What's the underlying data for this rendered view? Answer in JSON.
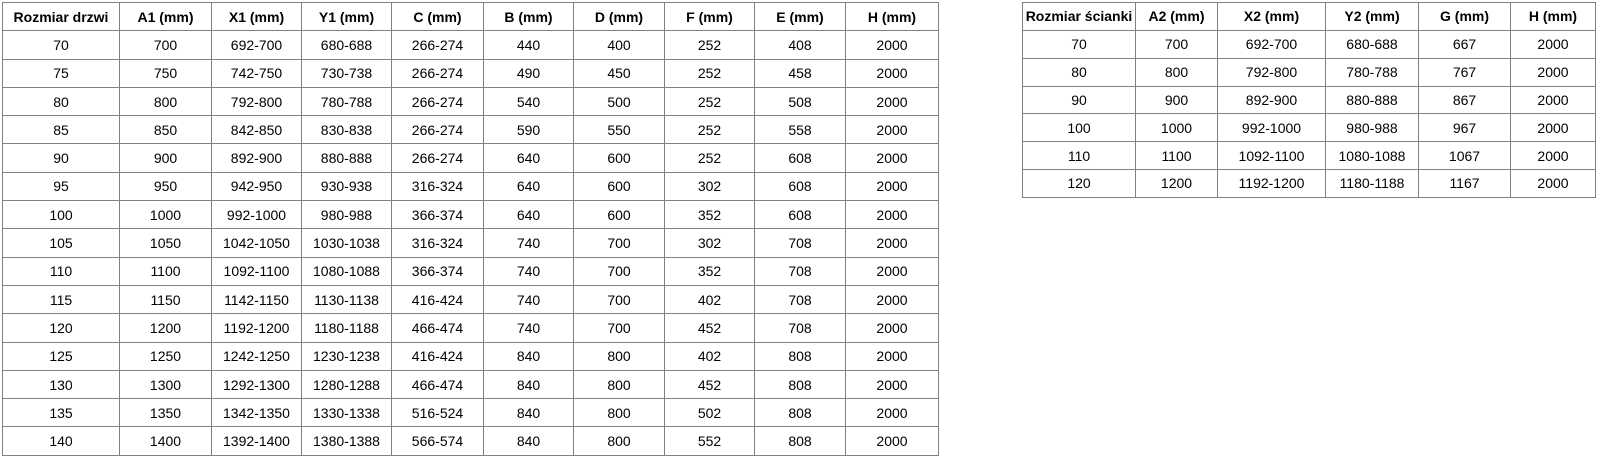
{
  "colors": {
    "border": "#7f7f7f",
    "text": "#000000",
    "background": "#ffffff"
  },
  "left_table": {
    "title_semantic": "door-size-table",
    "headers": [
      "Rozmiar drzwi",
      "A1 (mm)",
      "X1 (mm)",
      "Y1 (mm)",
      "C (mm)",
      "B (mm)",
      "D (mm)",
      "F (mm)",
      "E (mm)",
      "H (mm)"
    ],
    "rows": [
      [
        "70",
        "700",
        "692-700",
        "680-688",
        "266-274",
        "440",
        "400",
        "252",
        "408",
        "2000"
      ],
      [
        "75",
        "750",
        "742-750",
        "730-738",
        "266-274",
        "490",
        "450",
        "252",
        "458",
        "2000"
      ],
      [
        "80",
        "800",
        "792-800",
        "780-788",
        "266-274",
        "540",
        "500",
        "252",
        "508",
        "2000"
      ],
      [
        "85",
        "850",
        "842-850",
        "830-838",
        "266-274",
        "590",
        "550",
        "252",
        "558",
        "2000"
      ],
      [
        "90",
        "900",
        "892-900",
        "880-888",
        "266-274",
        "640",
        "600",
        "252",
        "608",
        "2000"
      ],
      [
        "95",
        "950",
        "942-950",
        "930-938",
        "316-324",
        "640",
        "600",
        "302",
        "608",
        "2000"
      ],
      [
        "100",
        "1000",
        "992-1000",
        "980-988",
        "366-374",
        "640",
        "600",
        "352",
        "608",
        "2000"
      ],
      [
        "105",
        "1050",
        "1042-1050",
        "1030-1038",
        "316-324",
        "740",
        "700",
        "302",
        "708",
        "2000"
      ],
      [
        "110",
        "1100",
        "1092-1100",
        "1080-1088",
        "366-374",
        "740",
        "700",
        "352",
        "708",
        "2000"
      ],
      [
        "115",
        "1150",
        "1142-1150",
        "1130-1138",
        "416-424",
        "740",
        "700",
        "402",
        "708",
        "2000"
      ],
      [
        "120",
        "1200",
        "1192-1200",
        "1180-1188",
        "466-474",
        "740",
        "700",
        "452",
        "708",
        "2000"
      ],
      [
        "125",
        "1250",
        "1242-1250",
        "1230-1238",
        "416-424",
        "840",
        "800",
        "402",
        "808",
        "2000"
      ],
      [
        "130",
        "1300",
        "1292-1300",
        "1280-1288",
        "466-474",
        "840",
        "800",
        "452",
        "808",
        "2000"
      ],
      [
        "135",
        "1350",
        "1342-1350",
        "1330-1338",
        "516-524",
        "840",
        "800",
        "502",
        "808",
        "2000"
      ],
      [
        "140",
        "1400",
        "1392-1400",
        "1380-1388",
        "566-574",
        "840",
        "800",
        "552",
        "808",
        "2000"
      ]
    ]
  },
  "right_table": {
    "title_semantic": "wall-panel-size-table",
    "headers": [
      "Rozmiar ścianki",
      "A2 (mm)",
      "X2 (mm)",
      "Y2 (mm)",
      "G (mm)",
      "H (mm)"
    ],
    "rows": [
      [
        "70",
        "700",
        "692-700",
        "680-688",
        "667",
        "2000"
      ],
      [
        "80",
        "800",
        "792-800",
        "780-788",
        "767",
        "2000"
      ],
      [
        "90",
        "900",
        "892-900",
        "880-888",
        "867",
        "2000"
      ],
      [
        "100",
        "1000",
        "992-1000",
        "980-988",
        "967",
        "2000"
      ],
      [
        "110",
        "1100",
        "1092-1100",
        "1080-1088",
        "1067",
        "2000"
      ],
      [
        "120",
        "1200",
        "1192-1200",
        "1180-1188",
        "1167",
        "2000"
      ]
    ]
  }
}
